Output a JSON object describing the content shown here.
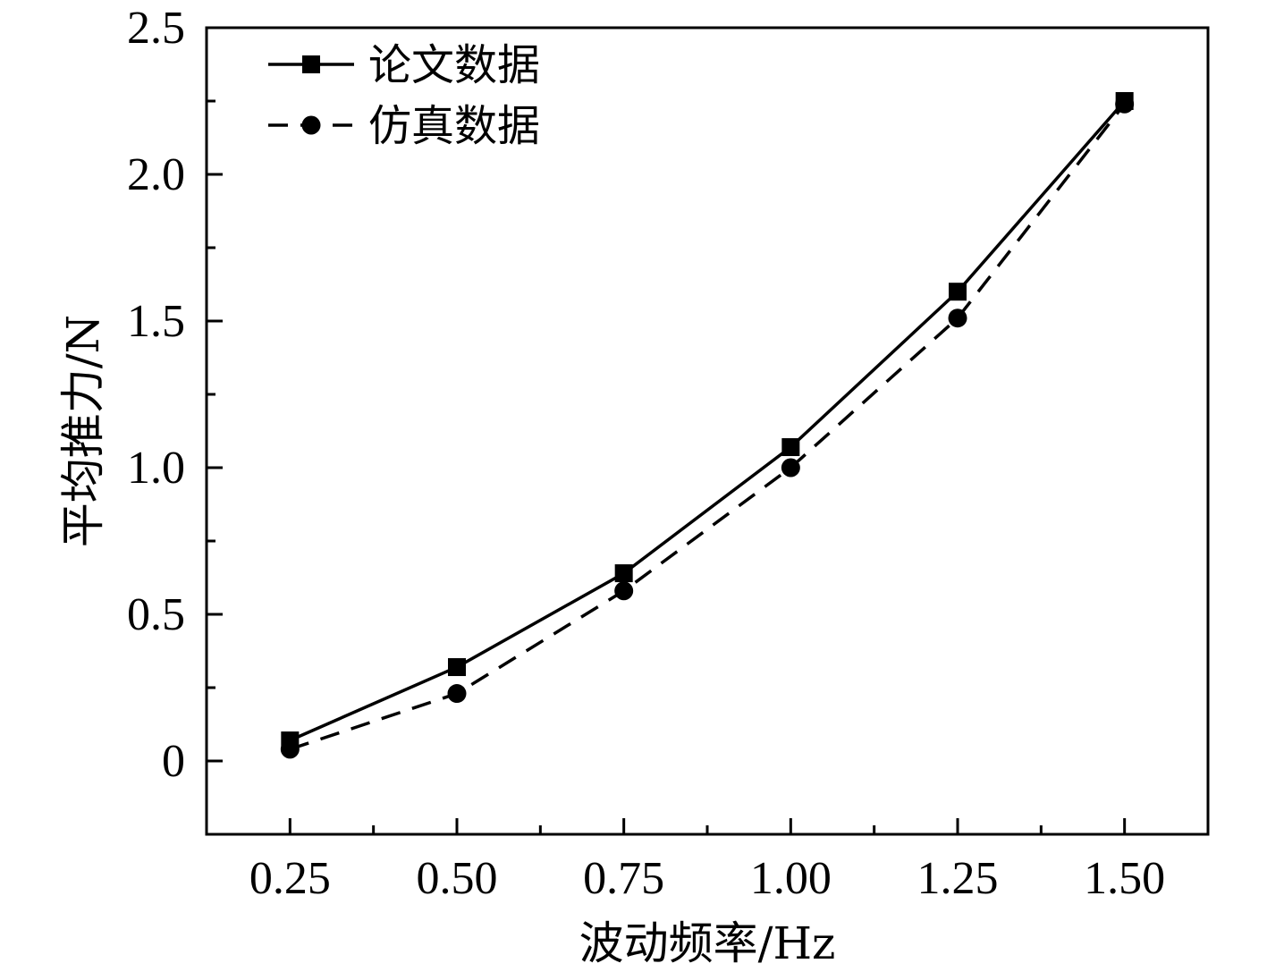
{
  "chart_data": {
    "type": "line",
    "title": "",
    "xlabel": "波动频率/Hz",
    "ylabel": "平均推力/N",
    "x": [
      0.25,
      0.5,
      0.75,
      1.0,
      1.25,
      1.5
    ],
    "x_tick_labels": [
      "0.25",
      "0.50",
      "0.75",
      "1.00",
      "1.25",
      "1.50"
    ],
    "xlim": [
      0.125,
      1.625
    ],
    "ylim": [
      -0.25,
      2.5
    ],
    "y_ticks": [
      0,
      0.5,
      1.0,
      1.5,
      2.0,
      2.5
    ],
    "y_tick_labels": [
      "0",
      "0.5",
      "1.0",
      "1.5",
      "2.0",
      "2.5"
    ],
    "grid": false,
    "legend_position": "top-left",
    "series": [
      {
        "name": "论文数据",
        "values": [
          0.07,
          0.32,
          0.64,
          1.07,
          1.6,
          2.25
        ],
        "line_style": "solid",
        "marker": "square",
        "color": "#000000"
      },
      {
        "name": "仿真数据",
        "values": [
          0.04,
          0.23,
          0.58,
          1.0,
          1.51,
          2.24
        ],
        "line_style": "dashed",
        "marker": "circle",
        "color": "#000000"
      }
    ]
  }
}
